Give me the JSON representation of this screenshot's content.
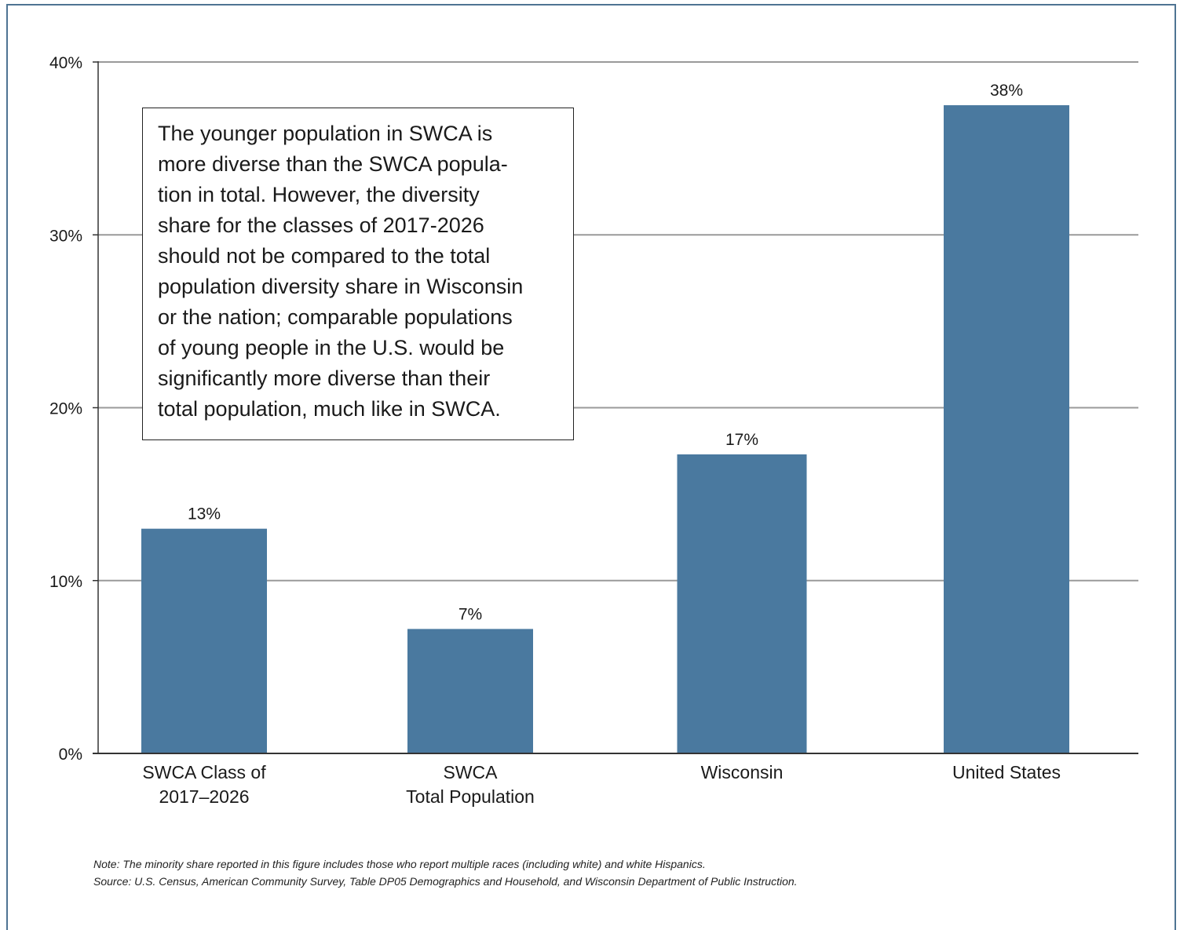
{
  "colors": {
    "bar": "#4a799f",
    "gridline": "#9a9a9a",
    "axis": "#333333",
    "frame": "#4f7493"
  },
  "chart_data": {
    "type": "bar",
    "categories": [
      [
        "SWCA Class of",
        "2017–2026"
      ],
      [
        "SWCA",
        "Total Population"
      ],
      [
        "Wisconsin"
      ],
      [
        "United States"
      ]
    ],
    "values": [
      13,
      7.2,
      17.3,
      37.5
    ],
    "data_labels": [
      "13%",
      "7%",
      "17%",
      "38%"
    ],
    "yticks": [
      0,
      10,
      20,
      30,
      40
    ],
    "ytick_labels": [
      "0%",
      "10%",
      "20%",
      "30%",
      "40%"
    ],
    "ylim": [
      0,
      40
    ],
    "grid": true,
    "legend": "none"
  },
  "callout": {
    "lines": [
      "The younger population in SWCA is",
      "more diverse than the SWCA popula-",
      "tion in total. However, the diversity",
      "share for the classes of 2017-2026",
      "should not be compared to the total",
      "population diversity share in Wisconsin",
      "or the nation; comparable populations",
      "of young people in the U.S. would be",
      "significantly more diverse than their",
      "total population, much like in SWCA."
    ]
  },
  "notes": {
    "note": "Note: The minority share reported in this figure includes those who report multiple races (including white) and white Hispanics.",
    "source": "Source: U.S. Census, American Community Survey, Table DP05 Demographics and Household, and Wisconsin Department of Public Instruction."
  }
}
